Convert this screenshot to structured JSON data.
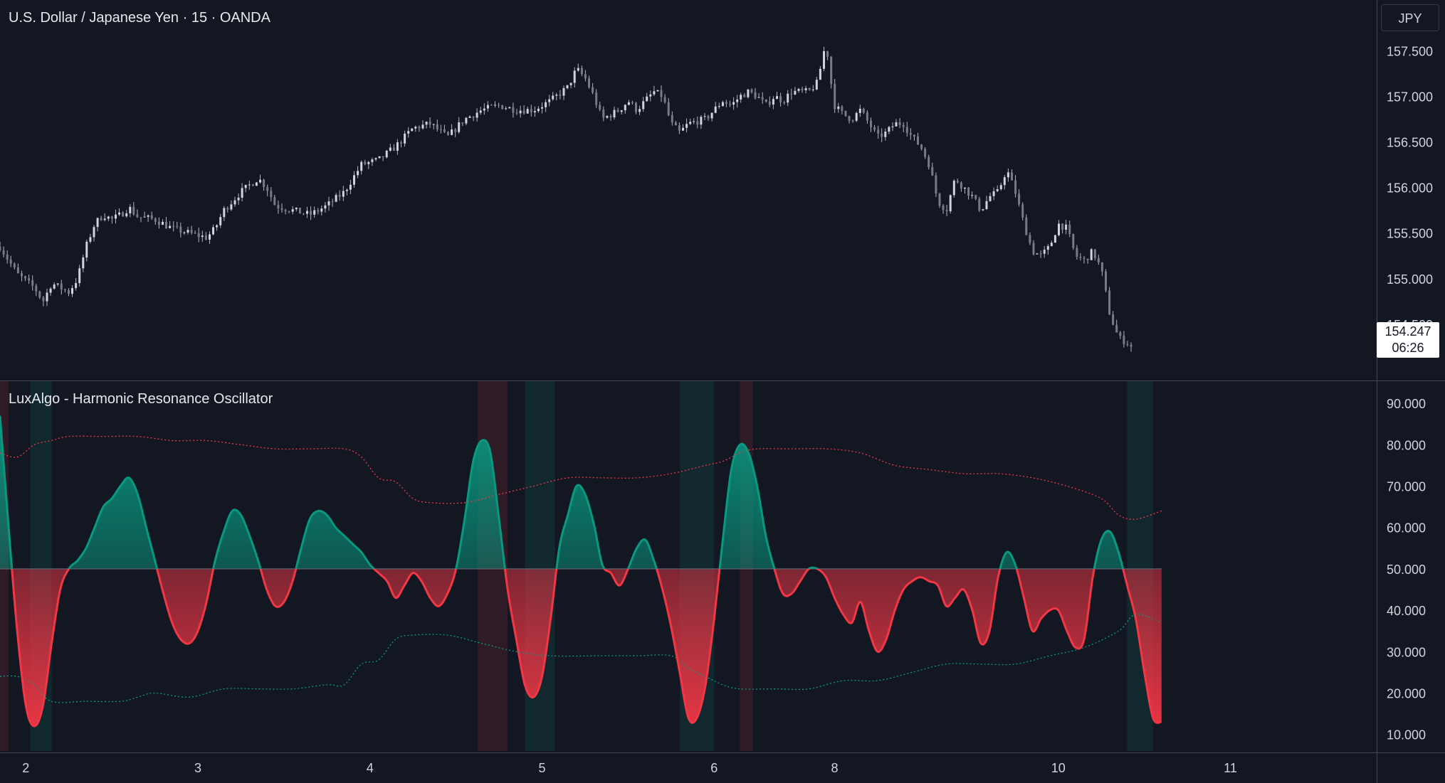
{
  "chart_data": [
    {
      "type": "candlestick",
      "title": "U.S. Dollar / Japanese Yen · 15 · OANDA",
      "currency": "JPY",
      "last_price": "154.247",
      "countdown": "06:26",
      "y_ticks": [
        "157.500",
        "157.000",
        "156.500",
        "156.000",
        "155.500",
        "155.000",
        "154.500"
      ],
      "ylim": [
        154.0,
        157.9
      ],
      "price_path": [
        [
          0,
          155.35
        ],
        [
          2,
          155.05
        ],
        [
          4,
          154.9
        ],
        [
          5,
          154.75
        ],
        [
          6,
          154.95
        ],
        [
          8,
          154.85
        ],
        [
          9,
          155.0
        ],
        [
          10,
          155.35
        ],
        [
          11,
          155.6
        ],
        [
          12,
          155.7
        ],
        [
          13,
          155.65
        ],
        [
          14,
          155.7
        ],
        [
          15,
          155.78
        ],
        [
          16,
          155.68
        ],
        [
          18,
          155.65
        ],
        [
          20,
          155.55
        ],
        [
          22,
          155.5
        ],
        [
          24,
          155.45
        ],
        [
          25,
          155.55
        ],
        [
          26,
          155.75
        ],
        [
          28,
          155.95
        ],
        [
          30,
          156.1
        ],
        [
          31,
          156.0
        ],
        [
          32,
          155.8
        ],
        [
          34,
          155.75
        ],
        [
          36,
          155.7
        ],
        [
          38,
          155.8
        ],
        [
          40,
          155.95
        ],
        [
          42,
          156.25
        ],
        [
          44,
          156.3
        ],
        [
          46,
          156.45
        ],
        [
          48,
          156.65
        ],
        [
          50,
          156.7
        ],
        [
          52,
          156.55
        ],
        [
          54,
          156.75
        ],
        [
          56,
          156.85
        ],
        [
          58,
          156.9
        ],
        [
          60,
          156.85
        ],
        [
          62,
          156.85
        ],
        [
          64,
          156.95
        ],
        [
          66,
          157.1
        ],
        [
          67,
          157.3
        ],
        [
          68,
          157.2
        ],
        [
          69,
          157.0
        ],
        [
          70,
          156.75
        ],
        [
          71,
          156.8
        ],
        [
          72,
          156.85
        ],
        [
          73,
          156.95
        ],
        [
          74,
          156.85
        ],
        [
          75,
          156.95
        ],
        [
          76,
          157.05
        ],
        [
          77,
          157.0
        ],
        [
          78,
          156.7
        ],
        [
          79,
          156.6
        ],
        [
          80,
          156.7
        ],
        [
          82,
          156.75
        ],
        [
          83,
          156.85
        ],
        [
          84,
          156.95
        ],
        [
          85,
          156.9
        ],
        [
          86,
          157.0
        ],
        [
          87,
          157.05
        ],
        [
          88,
          157.0
        ],
        [
          89,
          156.9
        ],
        [
          90,
          157.0
        ],
        [
          91,
          156.95
        ],
        [
          92,
          157.05
        ],
        [
          94,
          157.05
        ],
        [
          95,
          157.15
        ],
        [
          96,
          157.6
        ],
        [
          96.5,
          157.2
        ],
        [
          97,
          156.9
        ],
        [
          98,
          156.8
        ],
        [
          99,
          156.75
        ],
        [
          100,
          156.85
        ],
        [
          101,
          156.7
        ],
        [
          102,
          156.55
        ],
        [
          103,
          156.6
        ],
        [
          104,
          156.7
        ],
        [
          105,
          156.7
        ],
        [
          106,
          156.55
        ],
        [
          107,
          156.45
        ],
        [
          108,
          156.25
        ],
        [
          109,
          155.85
        ],
        [
          110,
          155.75
        ],
        [
          111,
          156.1
        ],
        [
          112,
          156.0
        ],
        [
          113,
          155.9
        ],
        [
          114,
          155.75
        ],
        [
          115,
          155.9
        ],
        [
          116,
          155.95
        ],
        [
          117,
          156.2
        ],
        [
          118,
          155.95
        ],
        [
          119,
          155.6
        ],
        [
          120,
          155.3
        ],
        [
          121,
          155.25
        ],
        [
          122,
          155.35
        ],
        [
          123,
          155.6
        ],
        [
          124,
          155.55
        ],
        [
          125,
          155.25
        ],
        [
          126,
          155.2
        ],
        [
          127,
          155.3
        ],
        [
          128,
          155.1
        ],
        [
          129,
          154.6
        ],
        [
          130,
          154.35
        ],
        [
          131,
          154.3
        ],
        [
          131.5,
          154.25
        ]
      ]
    },
    {
      "type": "line",
      "title": "LuxAlgo - Harmonic Resonance Oscillator",
      "y_ticks": [
        "90.000",
        "80.000",
        "70.000",
        "60.000",
        "50.000",
        "40.000",
        "30.000",
        "20.000",
        "10.000"
      ],
      "ylim": [
        6,
        95
      ],
      "midline": 50,
      "x_ticks": [
        {
          "label": "2",
          "x": 3
        },
        {
          "label": "3",
          "x": 23
        },
        {
          "label": "4",
          "x": 43
        },
        {
          "label": "5",
          "x": 63
        },
        {
          "label": "6",
          "x": 83
        },
        {
          "label": "8",
          "x": 97
        },
        {
          "label": "10",
          "x": 123
        },
        {
          "label": "11",
          "x": 143
        }
      ],
      "xlim": [
        0,
        160
      ],
      "oscillator": [
        [
          0,
          87
        ],
        [
          1,
          60
        ],
        [
          2,
          35
        ],
        [
          3,
          17
        ],
        [
          4,
          12
        ],
        [
          5,
          17
        ],
        [
          6,
          32
        ],
        [
          7,
          45
        ],
        [
          8,
          50
        ],
        [
          9,
          52
        ],
        [
          10,
          55
        ],
        [
          11,
          60
        ],
        [
          12,
          65
        ],
        [
          13,
          67
        ],
        [
          14,
          70
        ],
        [
          15,
          72
        ],
        [
          16,
          68
        ],
        [
          17,
          60
        ],
        [
          18,
          52
        ],
        [
          19,
          44
        ],
        [
          20,
          37
        ],
        [
          21,
          33
        ],
        [
          22,
          32
        ],
        [
          23,
          35
        ],
        [
          24,
          42
        ],
        [
          25,
          52
        ],
        [
          26,
          59
        ],
        [
          27,
          64
        ],
        [
          28,
          63
        ],
        [
          29,
          58
        ],
        [
          30,
          52
        ],
        [
          31,
          45
        ],
        [
          32,
          41
        ],
        [
          33,
          42
        ],
        [
          34,
          47
        ],
        [
          35,
          55
        ],
        [
          36,
          62
        ],
        [
          37,
          64
        ],
        [
          38,
          63
        ],
        [
          39,
          60
        ],
        [
          40,
          58
        ],
        [
          41,
          56
        ],
        [
          42,
          54
        ],
        [
          43,
          51
        ],
        [
          44,
          49
        ],
        [
          45,
          47
        ],
        [
          46,
          43
        ],
        [
          47,
          46
        ],
        [
          48,
          49
        ],
        [
          49,
          47
        ],
        [
          50,
          43
        ],
        [
          51,
          41
        ],
        [
          52,
          44
        ],
        [
          53,
          50
        ],
        [
          54,
          62
        ],
        [
          55,
          76
        ],
        [
          56,
          81
        ],
        [
          57,
          78
        ],
        [
          58,
          62
        ],
        [
          59,
          45
        ],
        [
          60,
          33
        ],
        [
          61,
          22
        ],
        [
          62,
          19
        ],
        [
          63,
          24
        ],
        [
          64,
          38
        ],
        [
          65,
          55
        ],
        [
          66,
          63
        ],
        [
          67,
          70
        ],
        [
          68,
          68
        ],
        [
          69,
          61
        ],
        [
          70,
          51
        ],
        [
          71,
          49
        ],
        [
          72,
          46
        ],
        [
          73,
          50
        ],
        [
          74,
          55
        ],
        [
          75,
          57
        ],
        [
          76,
          52
        ],
        [
          77,
          45
        ],
        [
          78,
          36
        ],
        [
          79,
          25
        ],
        [
          80,
          14
        ],
        [
          81,
          14
        ],
        [
          82,
          22
        ],
        [
          83,
          38
        ],
        [
          84,
          57
        ],
        [
          85,
          74
        ],
        [
          86,
          80
        ],
        [
          87,
          78
        ],
        [
          88,
          70
        ],
        [
          89,
          58
        ],
        [
          90,
          50
        ],
        [
          91,
          44
        ],
        [
          92,
          44
        ],
        [
          93,
          47
        ],
        [
          94,
          50
        ],
        [
          95,
          50
        ],
        [
          96,
          48
        ],
        [
          97,
          43
        ],
        [
          98,
          39
        ],
        [
          99,
          37
        ],
        [
          100,
          42
        ],
        [
          101,
          35
        ],
        [
          102,
          30
        ],
        [
          103,
          33
        ],
        [
          104,
          40
        ],
        [
          105,
          45
        ],
        [
          106,
          47
        ],
        [
          107,
          48
        ],
        [
          108,
          47
        ],
        [
          109,
          46
        ],
        [
          110,
          41
        ],
        [
          111,
          43
        ],
        [
          112,
          45
        ],
        [
          113,
          40
        ],
        [
          114,
          32
        ],
        [
          115,
          35
        ],
        [
          116,
          48
        ],
        [
          117,
          54
        ],
        [
          118,
          51
        ],
        [
          119,
          43
        ],
        [
          120,
          35
        ],
        [
          121,
          38
        ],
        [
          122,
          40
        ],
        [
          123,
          40
        ],
        [
          124,
          35
        ],
        [
          125,
          31
        ],
        [
          126,
          33
        ],
        [
          127,
          48
        ],
        [
          128,
          57
        ],
        [
          129,
          59
        ],
        [
          130,
          54
        ],
        [
          131,
          46
        ],
        [
          132,
          38
        ],
        [
          133,
          25
        ],
        [
          134,
          14
        ],
        [
          135,
          13
        ]
      ],
      "upper_band": [
        [
          0,
          78
        ],
        [
          2,
          77
        ],
        [
          4,
          80
        ],
        [
          6,
          81
        ],
        [
          8,
          82
        ],
        [
          12,
          82
        ],
        [
          16,
          82
        ],
        [
          20,
          81
        ],
        [
          24,
          81
        ],
        [
          28,
          80
        ],
        [
          32,
          79
        ],
        [
          36,
          79
        ],
        [
          40,
          79
        ],
        [
          42,
          77
        ],
        [
          44,
          72
        ],
        [
          46,
          71
        ],
        [
          48,
          67
        ],
        [
          50,
          66
        ],
        [
          54,
          66
        ],
        [
          58,
          68
        ],
        [
          62,
          70
        ],
        [
          66,
          72
        ],
        [
          70,
          72
        ],
        [
          74,
          72
        ],
        [
          78,
          73
        ],
        [
          82,
          75
        ],
        [
          84,
          76
        ],
        [
          86,
          78
        ],
        [
          88,
          79
        ],
        [
          92,
          79
        ],
        [
          96,
          79
        ],
        [
          100,
          78
        ],
        [
          104,
          75
        ],
        [
          108,
          74
        ],
        [
          112,
          73
        ],
        [
          116,
          73
        ],
        [
          120,
          72
        ],
        [
          124,
          70
        ],
        [
          128,
          67
        ],
        [
          130,
          63
        ],
        [
          132,
          62
        ],
        [
          135,
          64
        ]
      ],
      "lower_band": [
        [
          0,
          24
        ],
        [
          2,
          24
        ],
        [
          4,
          22
        ],
        [
          6,
          18
        ],
        [
          10,
          18
        ],
        [
          14,
          18
        ],
        [
          16,
          19
        ],
        [
          18,
          20
        ],
        [
          22,
          19
        ],
        [
          26,
          21
        ],
        [
          30,
          21
        ],
        [
          34,
          21
        ],
        [
          38,
          22
        ],
        [
          40,
          22
        ],
        [
          42,
          27
        ],
        [
          44,
          28
        ],
        [
          46,
          33
        ],
        [
          48,
          34
        ],
        [
          52,
          34
        ],
        [
          56,
          32
        ],
        [
          60,
          30
        ],
        [
          64,
          29
        ],
        [
          70,
          29
        ],
        [
          74,
          29
        ],
        [
          78,
          29
        ],
        [
          80,
          26
        ],
        [
          82,
          24
        ],
        [
          84,
          22
        ],
        [
          86,
          21
        ],
        [
          90,
          21
        ],
        [
          94,
          21
        ],
        [
          98,
          23
        ],
        [
          102,
          23
        ],
        [
          106,
          25
        ],
        [
          110,
          27
        ],
        [
          114,
          27
        ],
        [
          118,
          27
        ],
        [
          122,
          29
        ],
        [
          126,
          31
        ],
        [
          130,
          35
        ],
        [
          132,
          39
        ],
        [
          135,
          37
        ]
      ],
      "signal_zones": [
        {
          "from": 0,
          "to": 1,
          "kind": "bear"
        },
        {
          "from": 3.5,
          "to": 6,
          "kind": "bull"
        },
        {
          "from": 55.5,
          "to": 59,
          "kind": "bear"
        },
        {
          "from": 61,
          "to": 64.5,
          "kind": "bull"
        },
        {
          "from": 79,
          "to": 83,
          "kind": "bull"
        },
        {
          "from": 86,
          "to": 87.5,
          "kind": "bear"
        },
        {
          "from": 131,
          "to": 134,
          "kind": "bull"
        }
      ],
      "colors": {
        "bull": "#089981",
        "bear": "#f23645",
        "upper_band": "#f23645",
        "lower_band": "#089981",
        "midline": "#5d606b",
        "candles": "#b2b5be",
        "background": "#131722",
        "text": "#d1d4dc"
      }
    }
  ]
}
